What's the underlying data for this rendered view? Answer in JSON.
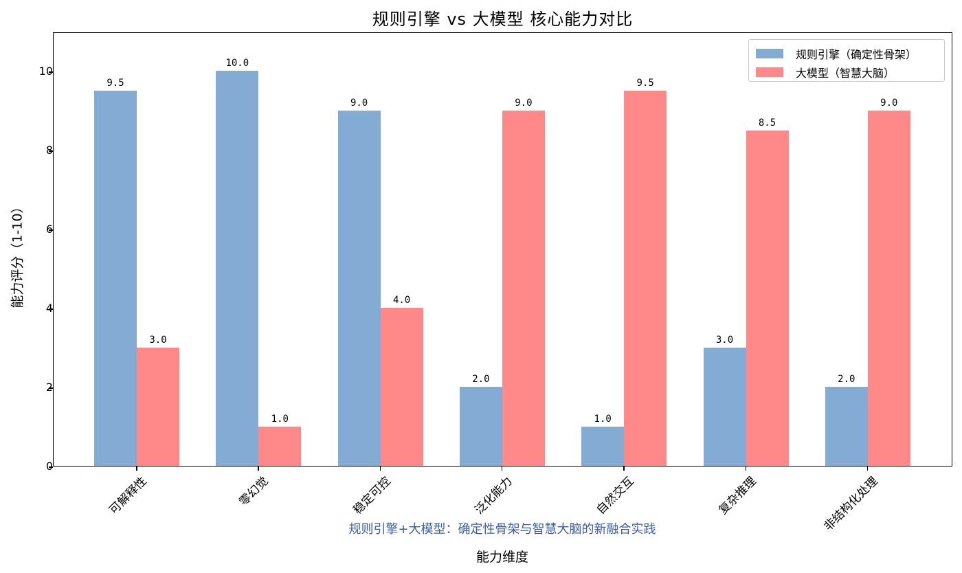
{
  "chart_data": {
    "type": "bar",
    "title": "规则引擎 vs 大模型 核心能力对比",
    "subtitle": "规则引擎+大模型：确定性骨架与智慧大脑的新融合实践",
    "xlabel": "能力维度",
    "ylabel": "能力评分（1-10）",
    "ylim": [
      0,
      11
    ],
    "yticks": [
      0,
      2,
      4,
      6,
      8,
      10
    ],
    "grid": false,
    "legend_position": "upper right",
    "categories": [
      "可解释性",
      "零幻觉",
      "稳定可控",
      "泛化能力",
      "自然交互",
      "复杂推理",
      "非结构化处理"
    ],
    "series": [
      {
        "name": "规则引擎（确定性骨架）",
        "color": "#84abd4",
        "values": [
          9.5,
          10.0,
          9.0,
          2.0,
          1.0,
          3.0,
          2.0
        ],
        "labels": [
          "9.5",
          "10.0",
          "9.0",
          "2.0",
          "1.0",
          "3.0",
          "2.0"
        ]
      },
      {
        "name": "大模型（智慧大脑）",
        "color": "#ff8888",
        "values": [
          3.0,
          1.0,
          4.0,
          9.0,
          9.5,
          8.5,
          9.0
        ],
        "labels": [
          "3.0",
          "1.0",
          "4.0",
          "9.0",
          "9.5",
          "8.5",
          "9.0"
        ]
      }
    ]
  }
}
